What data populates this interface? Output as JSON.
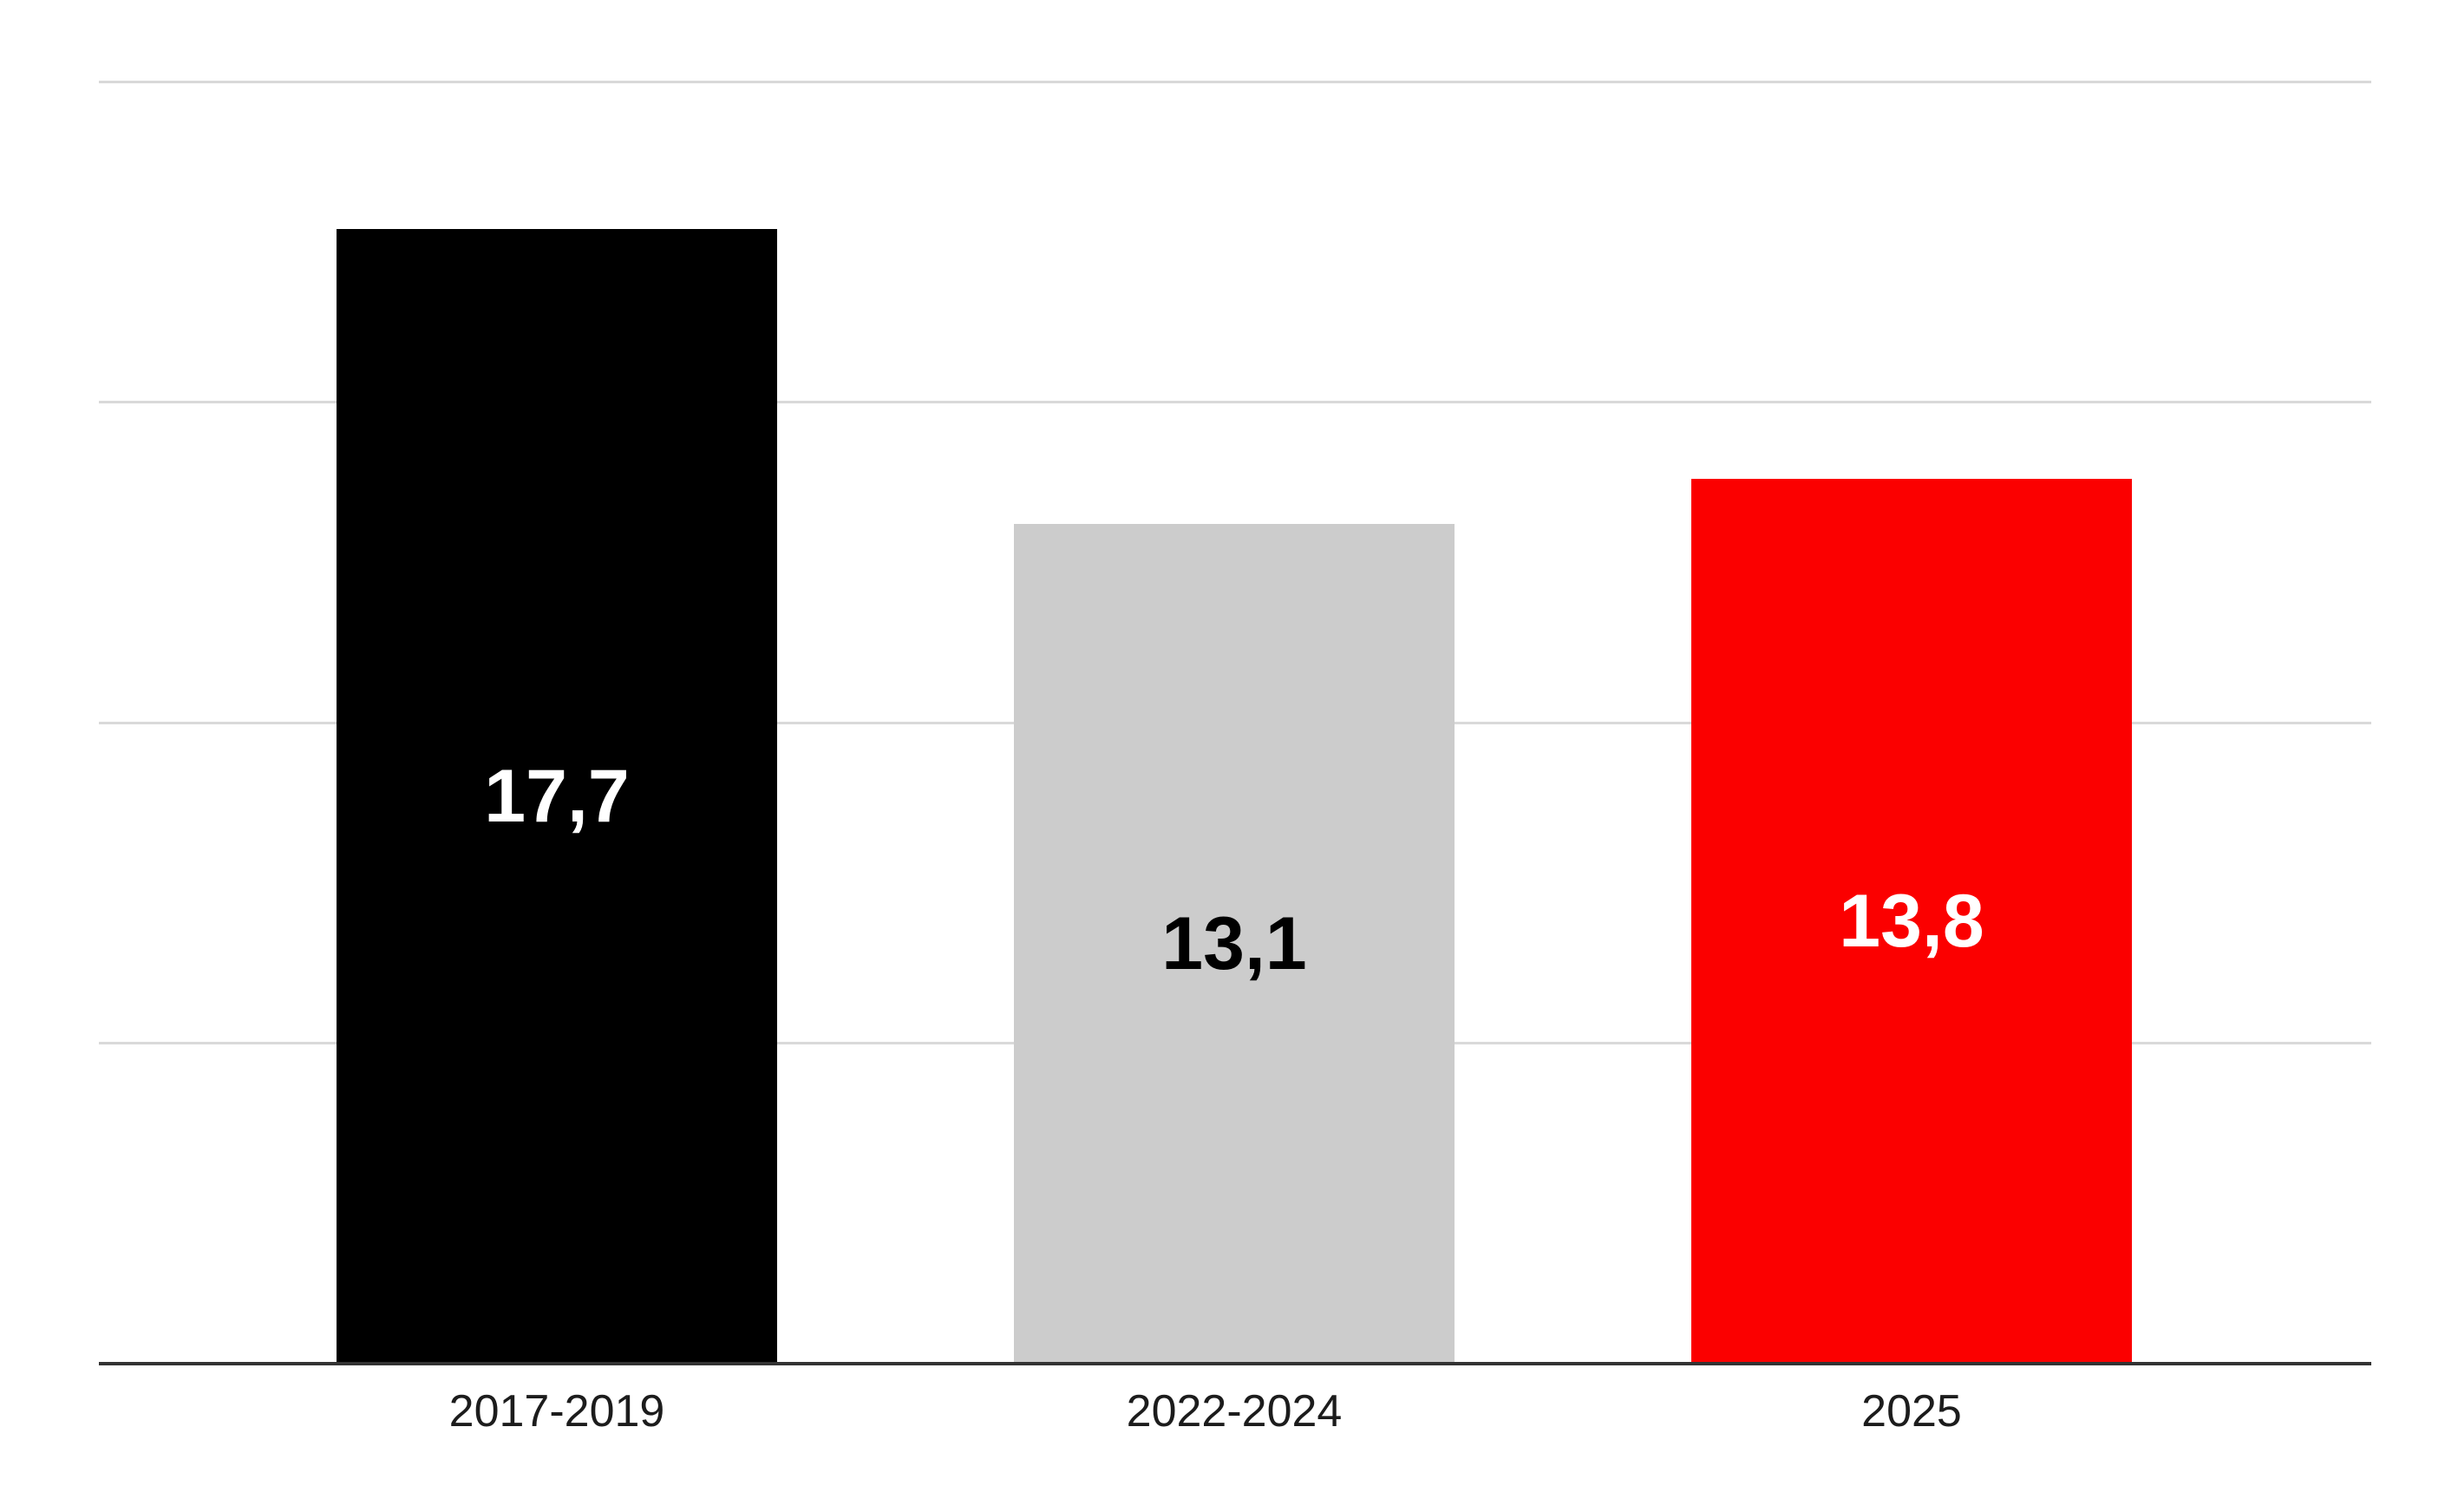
{
  "chart_data": {
    "type": "bar",
    "title": "",
    "xlabel": "",
    "ylabel": "",
    "categories": [
      "2017-2019",
      "2022-2024",
      "2025"
    ],
    "values": [
      17.7,
      13.1,
      13.8
    ],
    "value_labels": [
      "17,7",
      "13,1",
      "13,8"
    ],
    "bar_colors": [
      "#000000",
      "#cccccc",
      "#fb0000"
    ],
    "value_label_colors": [
      "#ffffff",
      "#000000",
      "#ffffff"
    ],
    "ylim": [
      0,
      20
    ],
    "grid_interval": 5,
    "grid_on": true,
    "legend_position": "none",
    "y_tick_labels_visible": false,
    "colors": {
      "background": "#ffffff",
      "gridline": "#d9d9d9",
      "axis_line": "#333333",
      "x_tick_label": "#1c1c1c"
    }
  }
}
